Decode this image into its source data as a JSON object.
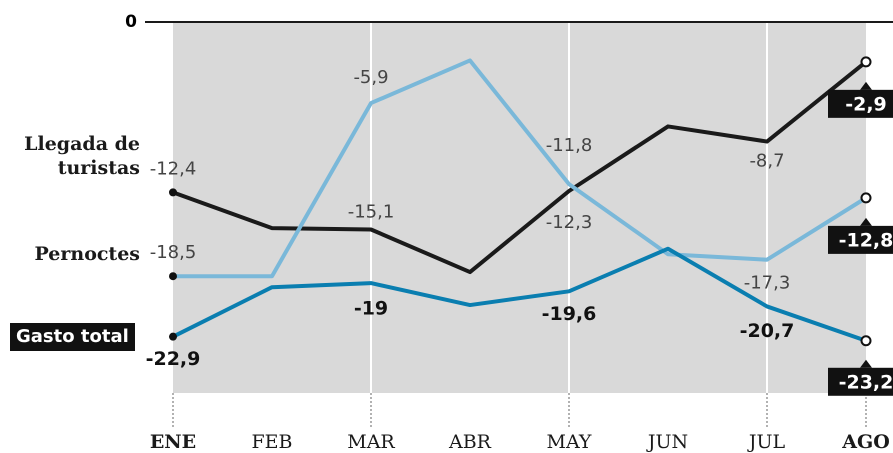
{
  "chart_data": {
    "type": "line",
    "categories": [
      "ENE",
      "FEB",
      "MAR",
      "ABR",
      "MAY",
      "JUN",
      "JUL",
      "AGO"
    ],
    "ylim": [
      -27,
      0
    ],
    "yticks": [
      0
    ],
    "series": [
      {
        "name": "Llegada de turistas",
        "color": "#1a1a1a",
        "values": [
          -12.4,
          -15.0,
          -15.1,
          -18.2,
          -12.3,
          -7.6,
          -8.7,
          -2.9
        ],
        "value_labels": [
          "-12,4",
          null,
          "-15,1",
          null,
          "-12,3",
          null,
          "-8,7",
          "-2,9"
        ]
      },
      {
        "name": "Pernoctes",
        "color": "#7ab8d9",
        "values": [
          -18.5,
          -18.5,
          -5.9,
          -2.8,
          -11.8,
          -16.9,
          -17.3,
          -12.8
        ],
        "value_labels": [
          "-18,5",
          null,
          "-5,9",
          null,
          "-11,8",
          null,
          "-17,3",
          "-12,8"
        ]
      },
      {
        "name": "Gasto total",
        "color": "#0a7eb0",
        "values": [
          -22.9,
          -19.3,
          -19,
          -20.6,
          -19.6,
          -16.5,
          -20.7,
          -23.2
        ],
        "value_labels": [
          "-22,9",
          null,
          "-19",
          null,
          "-19,6",
          null,
          "-20,7",
          "-23,2"
        ]
      }
    ]
  }
}
